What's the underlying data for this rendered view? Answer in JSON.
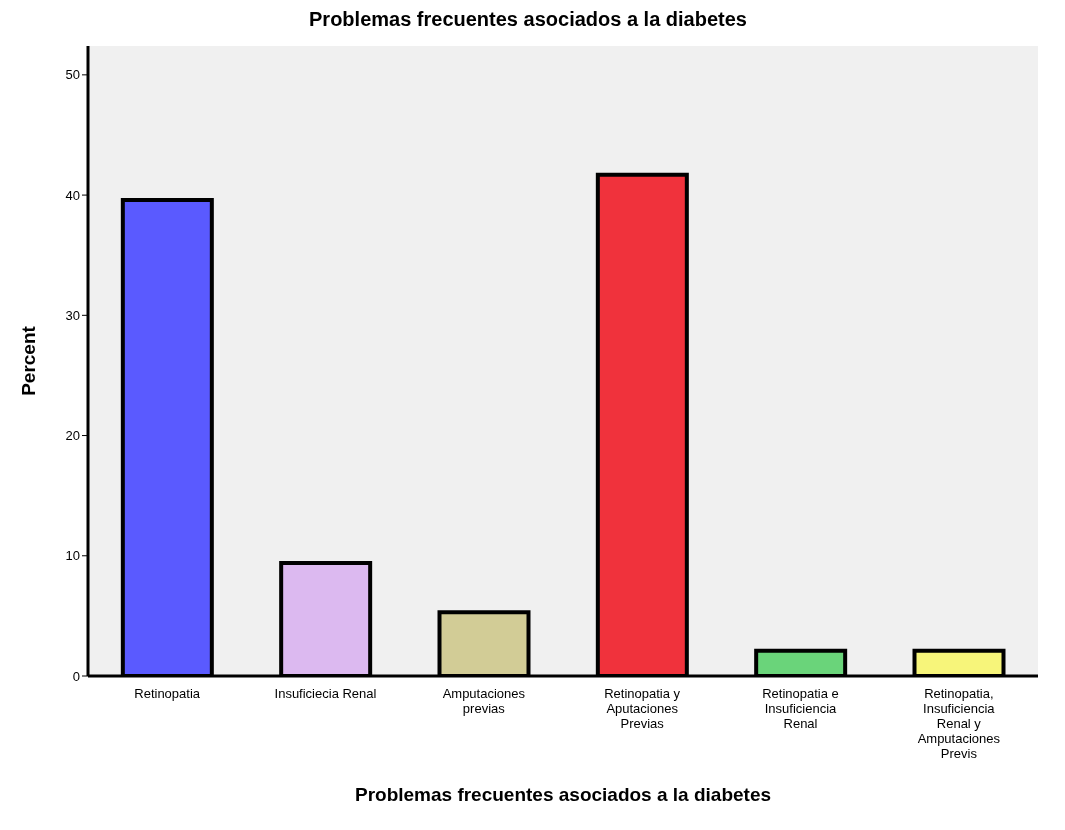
{
  "chart_data": {
    "type": "bar",
    "title": "Problemas frecuentes asociados a la diabetes",
    "xlabel": "Problemas frecuentes asociados a la diabetes",
    "ylabel": "Percent",
    "categories": [
      "Retinopatia",
      "Insuficiecia Renal",
      "Amputaciones previas",
      "Retinopatia y Aputaciones Previas",
      "Retinopatia e Insuficiencia Renal",
      "Retinopatia, Insuficiencia Renal y Amputaciones Previs"
    ],
    "values": [
      39.6,
      9.4,
      5.3,
      41.7,
      2.1,
      2.1
    ],
    "colors": [
      "#5a5aff",
      "#dcb9f0",
      "#d2cc96",
      "#f0323c",
      "#6ad47a",
      "#f7f57a"
    ],
    "ylim": [
      0,
      52.4
    ],
    "yticks": [
      0,
      10,
      20,
      30,
      40,
      50
    ],
    "grid": false
  }
}
